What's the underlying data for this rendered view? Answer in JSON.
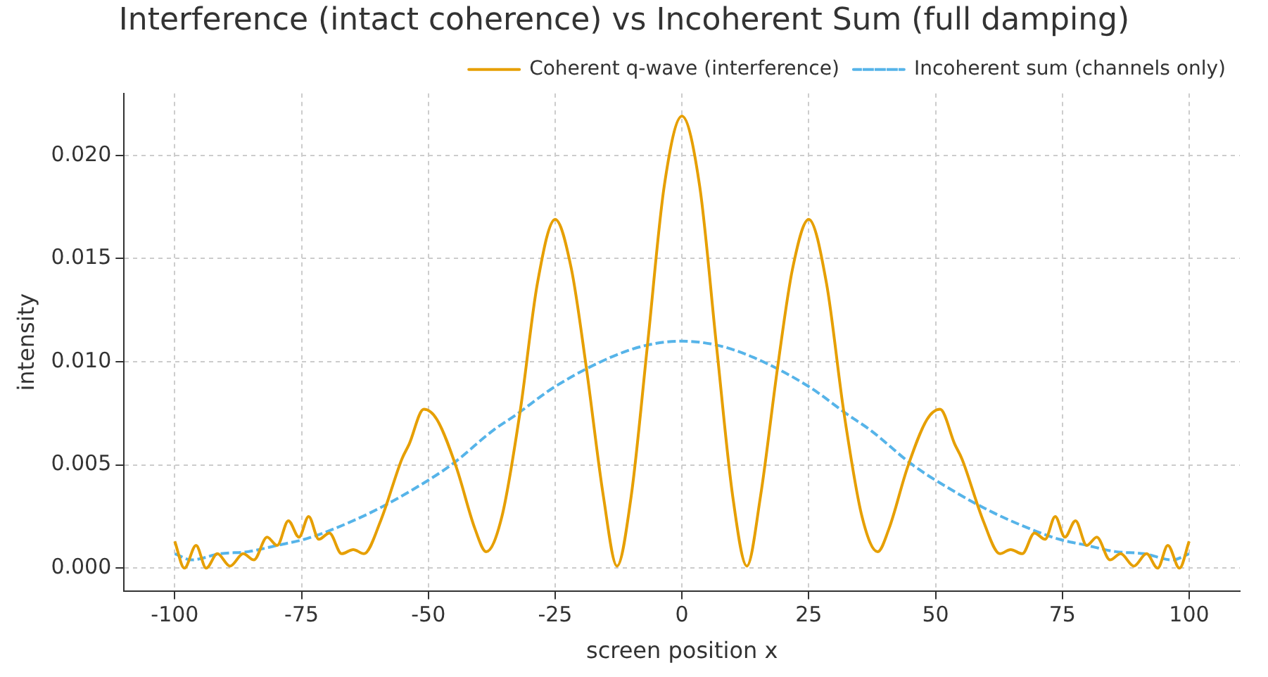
{
  "chart_data": {
    "type": "line",
    "title": "Interference (intact coherence) vs Incoherent Sum (full damping)",
    "xlabel": "screen position x",
    "ylabel": "intensity",
    "xlim": [
      -110,
      110
    ],
    "xticks": [
      -100,
      -75,
      -50,
      -25,
      0,
      25,
      50,
      75,
      100
    ],
    "ylim": [
      -0.0011,
      0.023
    ],
    "yticks": [
      {
        "value": 0,
        "label": "0.000"
      },
      {
        "value": 0.005,
        "label": "0.005"
      },
      {
        "value": 0.01,
        "label": "0.010"
      },
      {
        "value": 0.015,
        "label": "0.015"
      },
      {
        "value": 0.02,
        "label": "0.020"
      }
    ],
    "grid": true,
    "legend": "top right",
    "series": [
      {
        "name": "Coherent q-wave (interference)",
        "color": "#e69f00",
        "line_style": "solid",
        "x": [
          -100,
          -98.1,
          -95.8,
          -93.8,
          -91.6,
          -89.1,
          -86.5,
          -84.4,
          -81.8,
          -79.8,
          -77.6,
          -75.5,
          -73.6,
          -71.6,
          -69.5,
          -67.1,
          -64.8,
          -62.7,
          -59.4,
          -55.2,
          -53.8,
          -50.9,
          -48.3,
          -44.5,
          -40.8,
          -38.6,
          -35.5,
          -31.9,
          -28.5,
          -25,
          -21.8,
          -18.9,
          -15.5,
          -12.8,
          -10,
          -6.8,
          -3.5,
          0,
          3.5,
          6.8,
          10,
          12.8,
          15.5,
          18.9,
          21.8,
          25,
          28.5,
          31.9,
          35.5,
          38.6,
          40.8,
          44.5,
          48.3,
          50.9,
          53.8,
          55.2,
          59.4,
          62.7,
          64.8,
          67.1,
          69.5,
          71.6,
          73.6,
          75.5,
          77.6,
          79.8,
          81.8,
          84.4,
          86.5,
          89.1,
          91.6,
          93.8,
          95.8,
          98.1,
          100
        ],
        "values": [
          0.0013,
          0,
          0.0011,
          0,
          0.0007,
          0.0001,
          0.0007,
          0.0004,
          0.0015,
          0.0011,
          0.0023,
          0.0015,
          0.0025,
          0.0014,
          0.0017,
          0.0007,
          0.0009,
          0.0007,
          0.0023,
          0.0053,
          0.006,
          0.0077,
          0.0072,
          0.0049,
          0.0019,
          0.0008,
          0.0025,
          0.0076,
          0.0138,
          0.0169,
          0.0145,
          0.0098,
          0.0035,
          0.0001,
          0.0035,
          0.0108,
          0.0185,
          0.0219,
          0.0185,
          0.0108,
          0.0035,
          0.0001,
          0.0035,
          0.0098,
          0.0145,
          0.0169,
          0.0138,
          0.0076,
          0.0025,
          0.0008,
          0.0019,
          0.0049,
          0.0072,
          0.0077,
          0.006,
          0.0053,
          0.0023,
          0.0007,
          0.0009,
          0.0007,
          0.0017,
          0.0014,
          0.0025,
          0.0015,
          0.0023,
          0.0011,
          0.0015,
          0.0004,
          0.0007,
          0.0001,
          0.0007,
          0,
          0.0011,
          0,
          0.0013
        ]
      },
      {
        "name": "Incoherent sum (channels only)",
        "color": "#56b4e9",
        "line_style": "dashed",
        "x": [
          -100,
          -96.7,
          -91.1,
          -85.5,
          -79.9,
          -74.4,
          -69.7,
          -61.3,
          -53.8,
          -45.5,
          -37.1,
          -32.9,
          -25,
          -14.2,
          -7,
          0,
          7,
          14.2,
          25,
          32.9,
          37.1,
          45.5,
          53.8,
          61.3,
          69.7,
          74.4,
          79.9,
          85.5,
          91.1,
          96.7,
          100
        ],
        "values": [
          0.0007,
          0.0004,
          0.0007,
          0.0008,
          0.0011,
          0.0014,
          0.0018,
          0.0027,
          0.0037,
          0.005,
          0.0067,
          0.0074,
          0.0088,
          0.0102,
          0.0108,
          0.011,
          0.0108,
          0.0102,
          0.0088,
          0.0074,
          0.0067,
          0.005,
          0.0037,
          0.0027,
          0.0018,
          0.0014,
          0.0011,
          0.0008,
          0.0007,
          0.0004,
          0.0007
        ]
      }
    ]
  }
}
